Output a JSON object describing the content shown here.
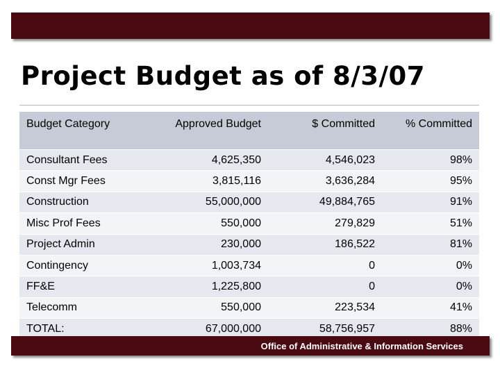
{
  "title": "Project Budget as of 8/3/07",
  "table": {
    "headers": [
      "Budget Category",
      "Approved Budget",
      "$ Committed",
      "% Committed"
    ],
    "rows": [
      [
        "Consultant Fees",
        "4,625,350",
        "4,546,023",
        "98%"
      ],
      [
        "Const Mgr Fees",
        "3,815,116",
        "3,636,284",
        "95%"
      ],
      [
        "Construction",
        "55,000,000",
        "49,884,765",
        "91%"
      ],
      [
        "Misc Prof Fees",
        "550,000",
        "279,829",
        "51%"
      ],
      [
        "Project Admin",
        "230,000",
        "186,522",
        "81%"
      ],
      [
        "Contingency",
        "1,003,734",
        "0",
        "0%"
      ],
      [
        "FF&E",
        "1,225,800",
        "0",
        "0%"
      ],
      [
        "Telecomm",
        "550,000",
        "223,534",
        "41%"
      ],
      [
        "TOTAL:",
        "67,000,000",
        "58,756,957",
        "88%"
      ]
    ]
  },
  "footer": {
    "text": "Office of Administrative & Information Services"
  },
  "colors": {
    "bar": "#4a0a12",
    "header_bg": "#c6cbd7",
    "row_odd": "#e6e8f0",
    "row_even": "#f3f4f8"
  }
}
